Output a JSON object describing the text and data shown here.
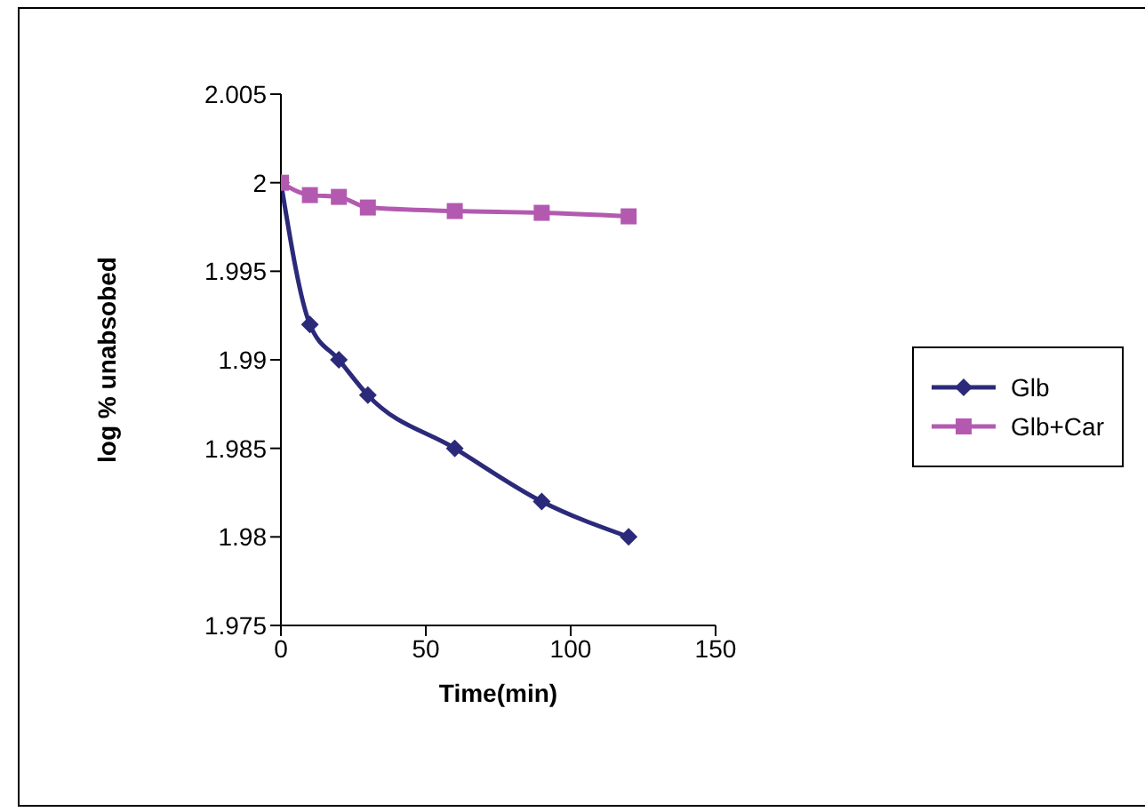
{
  "chart_data": {
    "type": "line",
    "xlabel": "Time(min)",
    "ylabel": "log % unabsobed",
    "x": [
      0,
      10,
      20,
      30,
      60,
      90,
      120
    ],
    "series": [
      {
        "name": "Glb",
        "color": "#2b2a7a",
        "marker": "diamond",
        "values": [
          2,
          1.992,
          1.99,
          1.988,
          1.985,
          1.982,
          1.98
        ]
      },
      {
        "name": "Glb+Car",
        "color": "#b35ab0",
        "marker": "square",
        "values": [
          2,
          1.9993,
          1.9992,
          1.9986,
          1.9984,
          1.9983,
          1.9981
        ]
      }
    ],
    "xlim": [
      0,
      150
    ],
    "xticks": [
      0,
      50,
      100,
      150
    ],
    "ylim": [
      1.975,
      2.005
    ],
    "yticks": [
      1.975,
      1.98,
      1.985,
      1.99,
      1.995,
      2,
      2.005
    ],
    "grid": false,
    "legend": "right",
    "line_style": "solid"
  }
}
